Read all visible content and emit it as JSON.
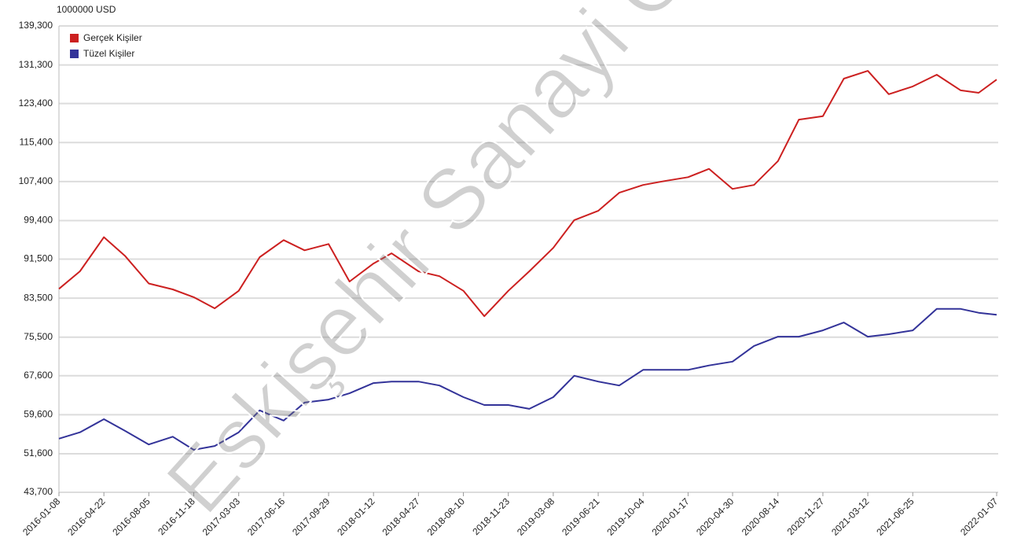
{
  "chart_data": {
    "type": "line",
    "y_label": "1000000 USD",
    "watermark": "Eskişehir Sanayi O",
    "x": [
      "2016-01-08",
      "2016-02-26",
      "2016-04-22",
      "2016-06-10",
      "2016-08-05",
      "2016-09-30",
      "2016-11-18",
      "2017-01-06",
      "2017-03-03",
      "2017-04-21",
      "2017-06-16",
      "2017-08-04",
      "2017-09-29",
      "2017-11-17",
      "2018-01-12",
      "2018-02-23",
      "2018-04-27",
      "2018-06-15",
      "2018-08-10",
      "2018-09-28",
      "2018-11-23",
      "2019-01-11",
      "2019-03-08",
      "2019-04-26",
      "2019-06-21",
      "2019-08-09",
      "2019-10-04",
      "2019-11-22",
      "2020-01-17",
      "2020-03-06",
      "2020-04-30",
      "2020-06-19",
      "2020-08-14",
      "2020-10-02",
      "2020-11-27",
      "2021-01-15",
      "2021-03-12",
      "2021-04-30",
      "2021-06-25",
      "2021-08-20",
      "2021-10-15",
      "2021-11-26",
      "2022-01-07"
    ],
    "series": [
      {
        "name": "Gerçek Kişiler",
        "color": "#cc2020",
        "values": [
          85400,
          89000,
          96000,
          92200,
          86500,
          85300,
          83700,
          81400,
          85000,
          91900,
          95400,
          93300,
          94600,
          86900,
          90600,
          92700,
          89000,
          88000,
          85000,
          79800,
          85000,
          89000,
          93800,
          99500,
          101400,
          105100,
          106700,
          107500,
          108300,
          110000,
          105900,
          106700,
          111600,
          120100,
          120800,
          128500,
          130100,
          125300,
          126900,
          129300,
          126100,
          125600,
          128300
        ]
      },
      {
        "name": "Tüzel Kişiler",
        "color": "#333399",
        "values": [
          54700,
          56000,
          58700,
          56300,
          53500,
          55100,
          52400,
          53200,
          56000,
          60500,
          58400,
          62100,
          62700,
          64000,
          66100,
          66400,
          66400,
          65600,
          63200,
          61600,
          61600,
          60800,
          63200,
          67600,
          66400,
          65600,
          68800,
          68800,
          68800,
          69700,
          70500,
          73700,
          75600,
          75600,
          76900,
          78500,
          75600,
          76100,
          76900,
          81300,
          81300,
          80500,
          80100
        ]
      }
    ],
    "xlim": [
      "2016-01-08",
      "2022-01-07"
    ],
    "xticks": [
      "2016-01-08",
      "2016-04-22",
      "2016-08-05",
      "2016-11-18",
      "2017-03-03",
      "2017-06-16",
      "2017-09-29",
      "2018-01-12",
      "2018-04-27",
      "2018-08-10",
      "2018-11-23",
      "2019-03-08",
      "2019-06-21",
      "2019-10-04",
      "2020-01-17",
      "2020-04-30",
      "2020-08-14",
      "2020-11-27",
      "2021-03-12",
      "2021-06-25",
      "2022-01-07"
    ],
    "ylim": [
      43700,
      139300
    ],
    "yticks": [
      {
        "value": 43700,
        "label": "43,700"
      },
      {
        "value": 51600,
        "label": "51,600"
      },
      {
        "value": 59600,
        "label": "59,600"
      },
      {
        "value": 67600,
        "label": "67,600"
      },
      {
        "value": 75500,
        "label": "75,500"
      },
      {
        "value": 83500,
        "label": "83,500"
      },
      {
        "value": 91500,
        "label": "91,500"
      },
      {
        "value": 99400,
        "label": "99,400"
      },
      {
        "value": 107400,
        "label": "107,400"
      },
      {
        "value": 115400,
        "label": "115,400"
      },
      {
        "value": 123400,
        "label": "123,400"
      },
      {
        "value": 131300,
        "label": "131,300"
      },
      {
        "value": 139300,
        "label": "139,300"
      }
    ],
    "grid": true,
    "legend": "top-left"
  }
}
